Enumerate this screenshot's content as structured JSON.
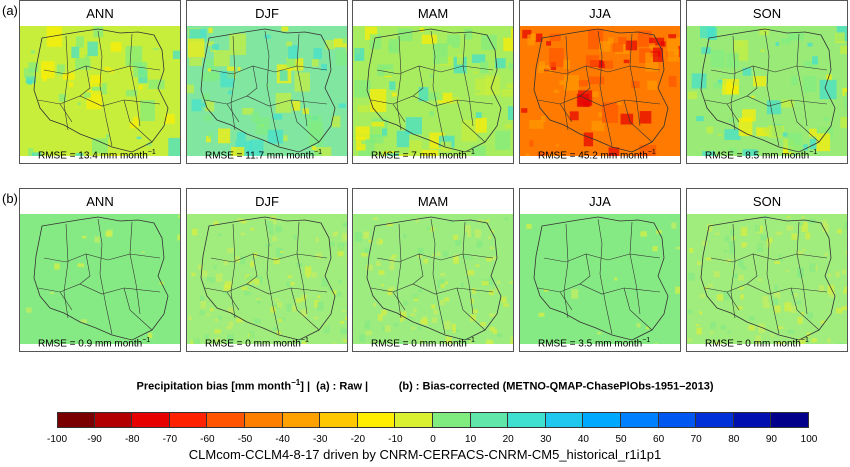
{
  "rows": [
    {
      "label": "(a)",
      "panels": [
        {
          "title": "ANN",
          "rmse_prefix": "RMSE = 13.4 mm month",
          "rmse_sup": "−1"
        },
        {
          "title": "DJF",
          "rmse_prefix": "RMSE = 11.7 mm month",
          "rmse_sup": "−1"
        },
        {
          "title": "MAM",
          "rmse_prefix": "RMSE = 7 mm month",
          "rmse_sup": "−1"
        },
        {
          "title": "JJA",
          "rmse_prefix": "RMSE = 45.2 mm month",
          "rmse_sup": "−1"
        },
        {
          "title": "SON",
          "rmse_prefix": "RMSE = 8.5 mm month",
          "rmse_sup": "−1"
        }
      ]
    },
    {
      "label": "(b)",
      "panels": [
        {
          "title": "ANN",
          "rmse_prefix": "RMSE = 0.9 mm month",
          "rmse_sup": "−1"
        },
        {
          "title": "DJF",
          "rmse_prefix": "RMSE = 0 mm month",
          "rmse_sup": "−1"
        },
        {
          "title": "MAM",
          "rmse_prefix": "RMSE = 0 mm month",
          "rmse_sup": "−1"
        },
        {
          "title": "JJA",
          "rmse_prefix": "RMSE = 3.5 mm month",
          "rmse_sup": "−1"
        },
        {
          "title": "SON",
          "rmse_prefix": "RMSE = 0 mm month",
          "rmse_sup": "−1"
        }
      ]
    }
  ],
  "caption": {
    "part1": "Precipitation bias [mm month",
    "part1_sup": "−1",
    "part2": "] |  (a) : Raw |          (b) : Bias-corrected (METNO-QMAP-ChasePlObs-1951–2013)"
  },
  "footer": "CLMcom-CCLM4-8-17 driven by CNRM-CERFACS-CNRM-CM5_historical_r1i1p1",
  "chart_data": {
    "type": "heatmap",
    "colorbar": {
      "ticks": [
        "-100",
        "-90",
        "-80",
        "-70",
        "-60",
        "-50",
        "-40",
        "-30",
        "-20",
        "-10",
        "0",
        "10",
        "20",
        "30",
        "40",
        "50",
        "60",
        "70",
        "80",
        "90",
        "100"
      ],
      "colors": [
        "#7a0000",
        "#b20000",
        "#e60000",
        "#ff2200",
        "#ff5500",
        "#ff7f00",
        "#ffa200",
        "#ffc800",
        "#ffee00",
        "#d8f030",
        "#80ec80",
        "#5fe6a8",
        "#40e0d0",
        "#20c8f0",
        "#00a8ff",
        "#0080ff",
        "#0058f0",
        "#0030d8",
        "#0010b0",
        "#00008a"
      ]
    },
    "base_colors": {
      "a": [
        "#c8ee3c",
        "#80e6a0",
        "#a8ec60",
        "#ff7a00",
        "#9aea78"
      ],
      "b": [
        "#86ea84",
        "#a0ec7c",
        "#9cec80",
        "#86ea84",
        "#a0ec7c"
      ]
    }
  }
}
